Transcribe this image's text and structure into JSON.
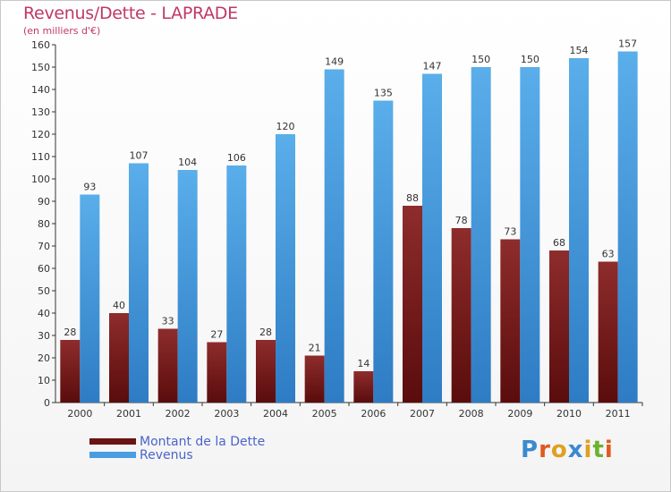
{
  "title": "Revenus/Dette - LAPRADE",
  "subtitle": "(en milliers d'€)",
  "logo_text": "Proxiti",
  "colors": {
    "dette": "#7a2020",
    "revenus": "#4a9de0",
    "title": "#c03868",
    "legend_text": "#4a64c8"
  },
  "chart_data": {
    "type": "bar",
    "categories": [
      "2000",
      "2001",
      "2002",
      "2003",
      "2004",
      "2005",
      "2006",
      "2007",
      "2008",
      "2009",
      "2010",
      "2011"
    ],
    "series": [
      {
        "name": "Montant de la Dette",
        "values": [
          28,
          40,
          33,
          27,
          28,
          21,
          14,
          88,
          78,
          73,
          68,
          63
        ]
      },
      {
        "name": "Revenus",
        "values": [
          93,
          107,
          104,
          106,
          120,
          149,
          135,
          147,
          150,
          150,
          154,
          157
        ]
      }
    ],
    "ylim": [
      0,
      160
    ],
    "yticks": [
      0,
      10,
      20,
      30,
      40,
      50,
      60,
      70,
      80,
      90,
      100,
      110,
      120,
      130,
      140,
      150,
      160
    ],
    "grid": false,
    "legend": "bottom-left"
  }
}
